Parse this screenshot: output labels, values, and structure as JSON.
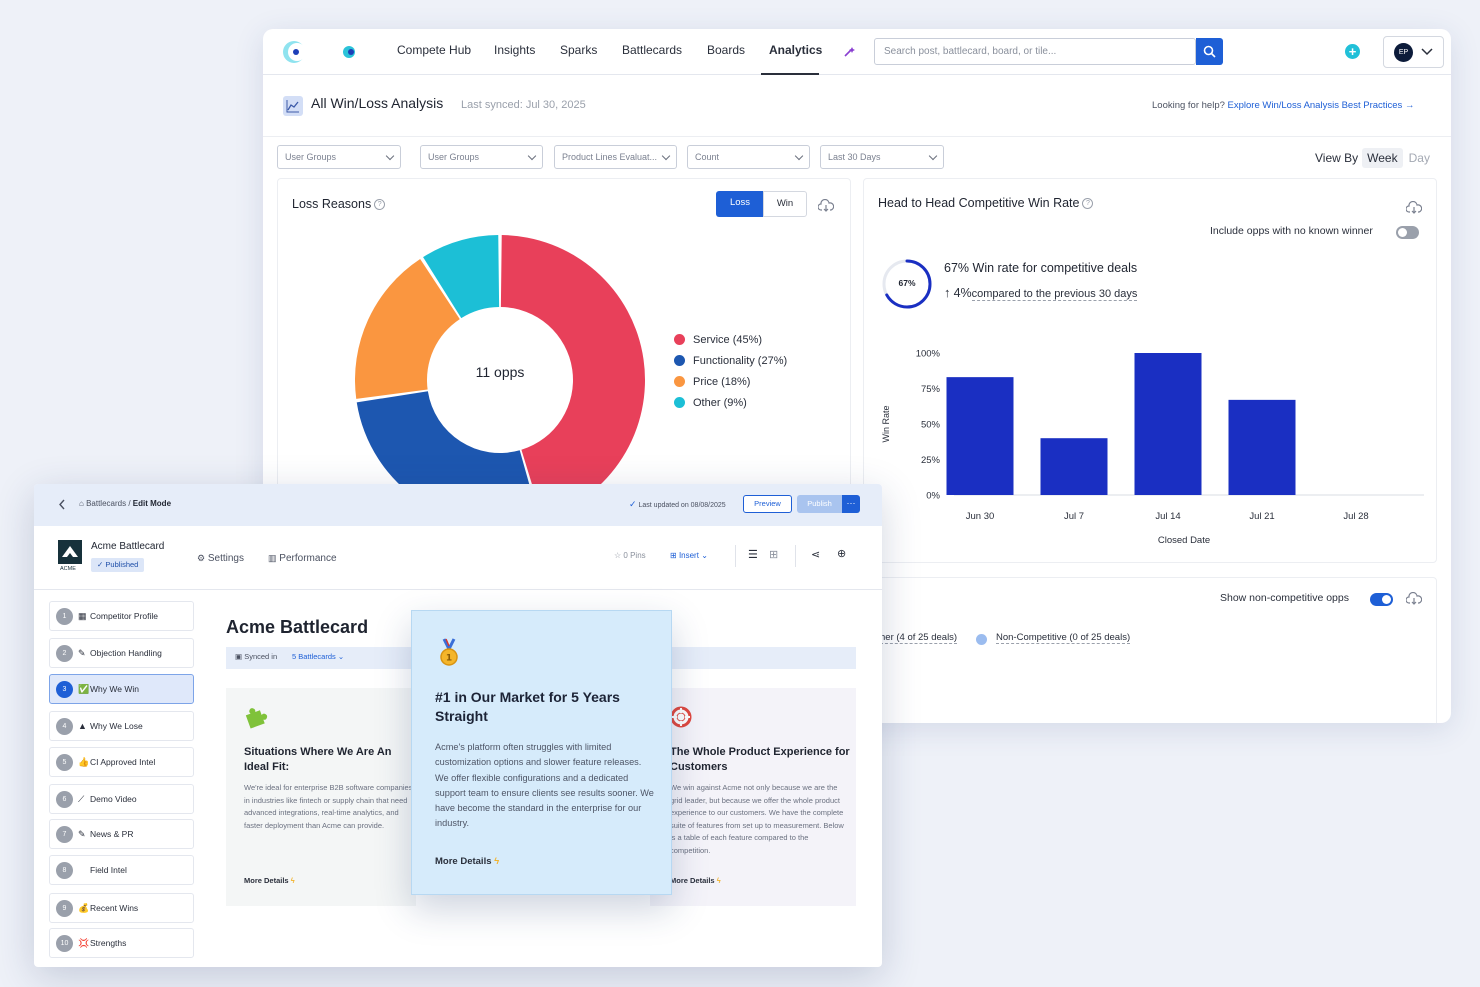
{
  "nav": {
    "items": [
      "Compete Hub",
      "Insights",
      "Sparks",
      "Battlecards",
      "Boards",
      "Analytics"
    ],
    "search_placeholder": "Search post, battlecard, board, or tile...",
    "avatar_initials": "EP"
  },
  "analysis": {
    "title": "All Win/Loss Analysis",
    "synced": "Last synced: Jul 30, 2025",
    "help_text": "Looking for help?",
    "help_link": "Explore Win/Loss Analysis Best Practices",
    "filters": [
      "User Groups",
      "User Groups",
      "Product Lines Evaluat...",
      "Count",
      "Last 30 Days"
    ],
    "view_by_label": "View By",
    "view_by_options": [
      "Week",
      "Day"
    ]
  },
  "loss_reasons": {
    "title": "Loss Reasons",
    "toggle": [
      "Loss",
      "Win"
    ],
    "center_label": "11 opps",
    "chart_data": {
      "type": "pie",
      "categories": [
        "Service (45%)",
        "Functionality (27%)",
        "Price (18%)",
        "Other (9%)"
      ],
      "values": [
        45,
        27,
        18,
        9
      ],
      "colors": [
        "#e8405a",
        "#1d57b0",
        "#fa9640",
        "#1cbfd6"
      ]
    }
  },
  "win_rate": {
    "title": "Head to Head Competitive Win Rate",
    "include_label": "Include opps with no known winner",
    "ring_label": "67%",
    "ring_value": 67,
    "headline_value": "67%",
    "headline_text": "Win rate for competitive deals",
    "delta_value": "4%",
    "delta_text": "compared to the previous 30 days",
    "chart_data": {
      "type": "bar",
      "categories": [
        "Jun 30",
        "Jul 7",
        "Jul 14",
        "Jul 21",
        "Jul 28"
      ],
      "values": [
        83,
        40,
        100,
        67,
        null
      ],
      "y_ticks": [
        "100%",
        "75%",
        "50%",
        "25%",
        "0%"
      ],
      "ylim": [
        0,
        100
      ],
      "ylabel": "Win Rate",
      "xlabel": "Closed Date",
      "bar_color": "#1a2fc2"
    }
  },
  "competitive": {
    "show_label": "Show non-competitive opps",
    "legend_left": "her (4 of 25 deals)",
    "legend_right": "Non-Competitive (0 of 25 deals)"
  },
  "battlecard": {
    "breadcrumb_root": "Battlecards",
    "breadcrumb_current": "Edit Mode",
    "last_updated": "Last updated on 08/08/2025",
    "preview": "Preview",
    "publish": "Publish",
    "more": "···",
    "name": "Acme Battlecard",
    "logo_text": "ACME",
    "status": "Published",
    "tabs": [
      "Settings",
      "Performance"
    ],
    "pins": "0 Pins",
    "insert": "Insert",
    "title": "Acme Battlecard",
    "synced_in_label": "Synced in",
    "synced_in_link": "5 Battlecards",
    "sidebar": [
      {
        "num": "1",
        "icon": "▦",
        "label": "Competitor Profile"
      },
      {
        "num": "2",
        "icon": "✎",
        "label": "Objection Handling"
      },
      {
        "num": "3",
        "icon": "✅",
        "label": "Why We Win"
      },
      {
        "num": "4",
        "icon": "▲",
        "label": "Why We Lose"
      },
      {
        "num": "5",
        "icon": "👍",
        "label": "CI Approved Intel"
      },
      {
        "num": "6",
        "icon": "⟋",
        "label": "Demo Video"
      },
      {
        "num": "7",
        "icon": "✎",
        "label": "News & PR"
      },
      {
        "num": "8",
        "icon": "",
        "label": "Field Intel"
      },
      {
        "num": "9",
        "icon": "💰",
        "label": "Recent Wins"
      },
      {
        "num": "10",
        "icon": "💢",
        "label": "Strengths"
      }
    ],
    "panels": [
      {
        "title": "Situations Where We Are An Ideal Fit:",
        "body": "We're ideal for enterprise B2B software companies in industries like fintech or supply chain that need advanced integrations, real-time analytics, and faster deployment than Acme can provide.",
        "more": "More Details"
      },
      {
        "title": "The Whole Product Experience for Customers",
        "body": "We win against Acme not only because we are the grid leader, but because we offer the whole product experience to our customers. We have the complete suite of features from set up to measurement. Below is a table of each feature compared to the competition.",
        "more": "More Details"
      }
    ],
    "highlight": {
      "title": "#1 in Our Market for 5 Years Straight",
      "body": "Acme's platform often struggles with limited customization options and slower feature releases. We offer flexible configurations and a dedicated support team to ensure clients see results sooner. We have become the standard in the enterprise for our industry.",
      "more": "More Details"
    }
  }
}
